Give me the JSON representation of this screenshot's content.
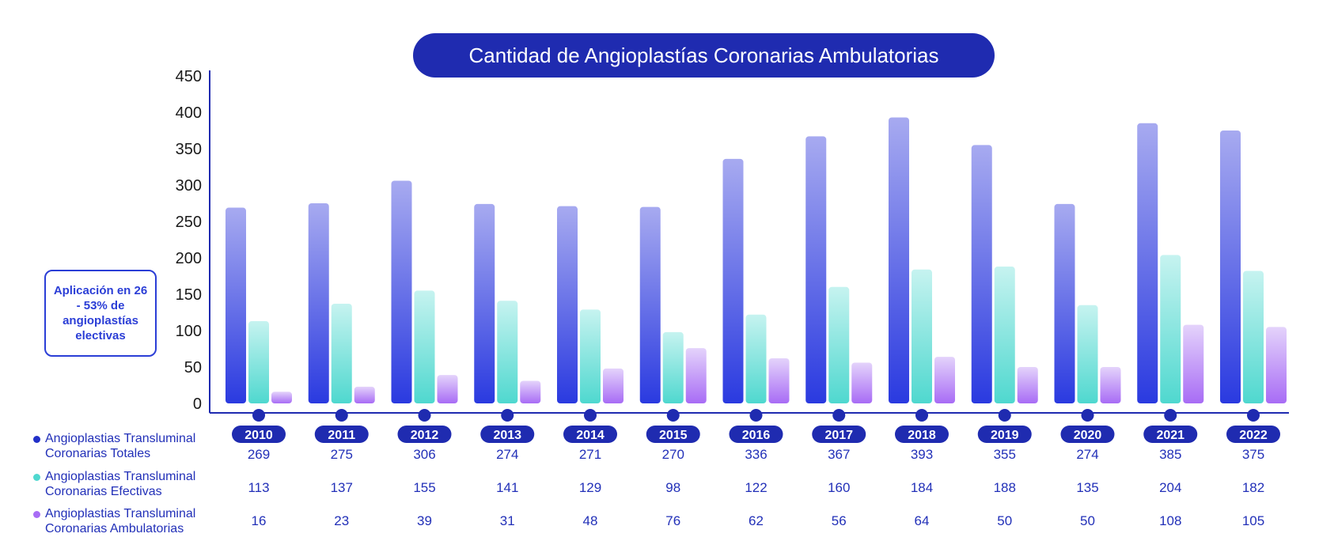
{
  "title": "Cantidad de Angioplastías Coronarias Ambulatorias",
  "note": "Aplicación en 26 - 53% de angioplastías electivas",
  "colors": {
    "title_bg": "#1f2bb0",
    "axis": "#1f2bb0",
    "text": "#2230b8",
    "total_top": "#a7aaf0",
    "total_bottom": "#2a3ae0",
    "efectivas_top": "#c6f3f0",
    "efectivas_bottom": "#4fd8cf",
    "ambulatorias_top": "#e4d3fb",
    "ambulatorias_bottom": "#a86cf5",
    "legend_total": "#2230c8",
    "legend_efectivas": "#4fd8cf",
    "legend_ambulatorias": "#a86cf5"
  },
  "chart_data": {
    "type": "bar",
    "categories": [
      "2010",
      "2011",
      "2012",
      "2013",
      "2014",
      "2015",
      "2016",
      "2017",
      "2018",
      "2019",
      "2020",
      "2021",
      "2022"
    ],
    "series": [
      {
        "name": "Angioplastias Transluminal Coronarias Totales",
        "values": [
          269,
          275,
          306,
          274,
          271,
          270,
          336,
          367,
          393,
          355,
          274,
          385,
          375
        ]
      },
      {
        "name": "Angioplastias Transluminal Coronarias Efectivas",
        "values": [
          113,
          137,
          155,
          141,
          129,
          98,
          122,
          160,
          184,
          188,
          135,
          204,
          182
        ]
      },
      {
        "name": "Angioplastias Transluminal Coronarias Ambulatorias",
        "values": [
          16,
          23,
          39,
          31,
          48,
          76,
          62,
          56,
          64,
          50,
          50,
          108,
          105
        ]
      }
    ],
    "yticks": [
      "0",
      "50",
      "100",
      "150",
      "200",
      "250",
      "300",
      "350",
      "400",
      "450"
    ],
    "ylim": [
      0,
      450
    ],
    "grid": false,
    "legend_placement": "bottom-left table"
  }
}
